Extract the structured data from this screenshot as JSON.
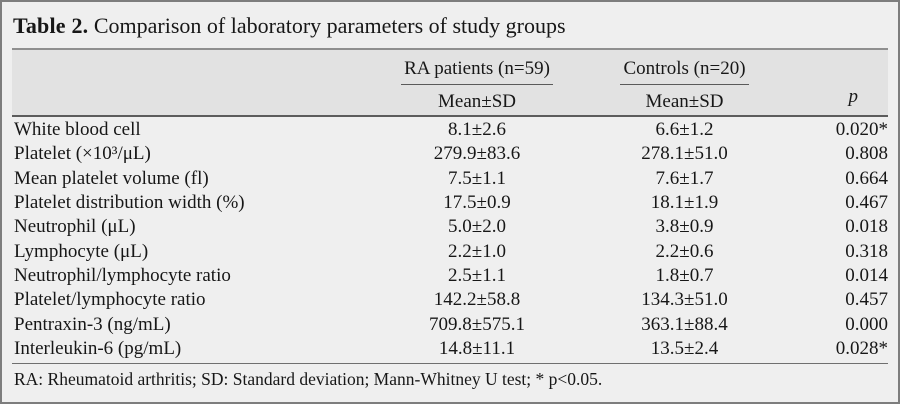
{
  "table": {
    "title_label": "Table 2.",
    "title_text": " Comparison of laboratory parameters of study groups",
    "header": {
      "group1": "RA patients (n=59)",
      "group2": "Controls (n=20)",
      "mean_sd": "Mean±SD",
      "p": "p"
    },
    "rows": [
      {
        "label": "White blood cell",
        "ra": "8.1±2.6",
        "control": "6.6±1.2",
        "p": "0.020*"
      },
      {
        "label": "Platelet (×10³/μL)",
        "ra": "279.9±83.6",
        "control": "278.1±51.0",
        "p": "0.808"
      },
      {
        "label": "Mean platelet volume (fl)",
        "ra": "7.5±1.1",
        "control": "7.6±1.7",
        "p": "0.664"
      },
      {
        "label": "Platelet distribution width (%)",
        "ra": "17.5±0.9",
        "control": "18.1±1.9",
        "p": "0.467"
      },
      {
        "label": "Neutrophil (μL)",
        "ra": "5.0±2.0",
        "control": "3.8±0.9",
        "p": "0.018"
      },
      {
        "label": "Lymphocyte (μL)",
        "ra": "2.2±1.0",
        "control": "2.2±0.6",
        "p": "0.318"
      },
      {
        "label": "Neutrophil/lymphocyte ratio",
        "ra": "2.5±1.1",
        "control": "1.8±0.7",
        "p": "0.014"
      },
      {
        "label": "Platelet/lymphocyte ratio",
        "ra": "142.2±58.8",
        "control": "134.3±51.0",
        "p": "0.457"
      },
      {
        "label": "Pentraxin-3 (ng/mL)",
        "ra": "709.8±575.1",
        "control": "363.1±88.4",
        "p": "0.000"
      },
      {
        "label": "Interleukin-6 (pg/mL)",
        "ra": "14.8±11.1",
        "control": "13.5±2.4",
        "p": "0.028*"
      }
    ],
    "footnote": "RA: Rheumatoid arthritis; SD: Standard deviation; Mann-Whitney U test; * p<0.05."
  },
  "colors": {
    "background": "#efefef",
    "header_band": "#e2e2e2",
    "border": "#7d7d7d",
    "rule_light": "#8f8f8f",
    "rule_dark": "#5c5c5c",
    "text": "#171717"
  }
}
